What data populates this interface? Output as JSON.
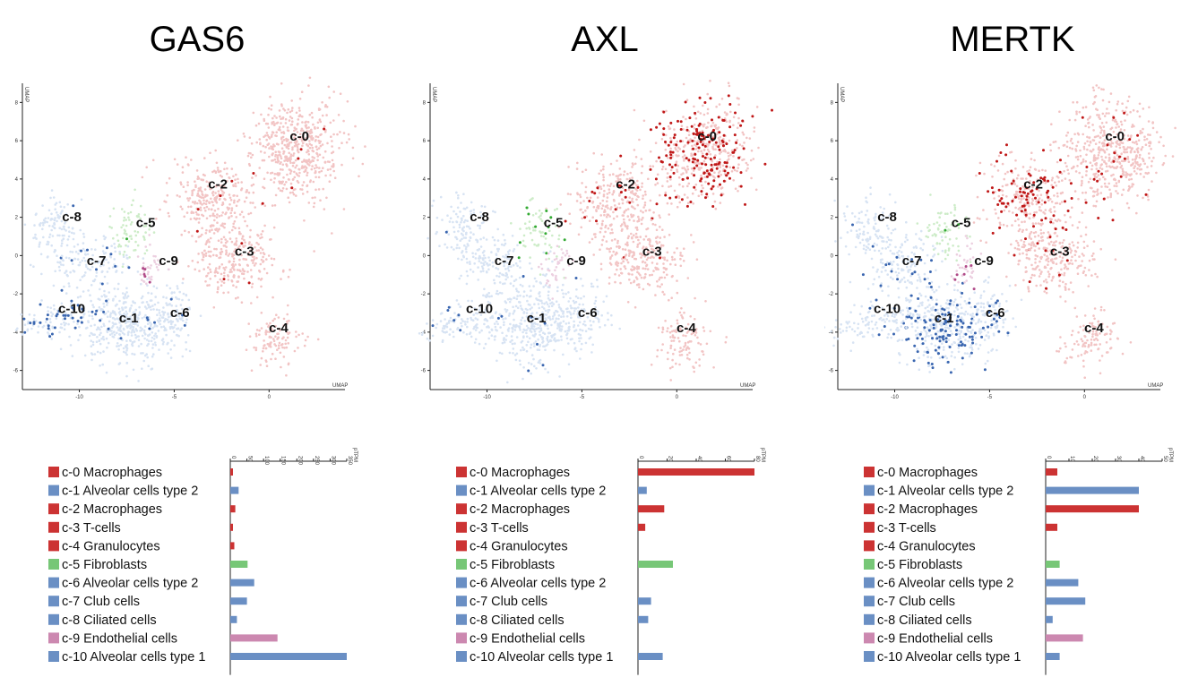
{
  "cluster_colors": {
    "c-0": "#cc3333",
    "c-1": "#6a8fc4",
    "c-2": "#cc3333",
    "c-3": "#cc3333",
    "c-4": "#cc3333",
    "c-5": "#77c777",
    "c-6": "#6a8fc4",
    "c-7": "#6a8fc4",
    "c-8": "#6a8fc4",
    "c-9": "#cc88b0",
    "c-10": "#6a8fc4"
  },
  "chart_data": [
    {
      "gene": "GAS6",
      "type": "scatter",
      "xlabel": "UMAP",
      "ylabel": "UMAP",
      "xlim": [
        -13,
        4
      ],
      "ylim": [
        -7,
        9
      ],
      "xticks": [
        -10,
        -5,
        0
      ],
      "yticks": [
        -6,
        -4,
        -2,
        0,
        2,
        4,
        6,
        8
      ],
      "clusters": [
        "c-0",
        "c-1",
        "c-2",
        "c-3",
        "c-4",
        "c-5",
        "c-6",
        "c-7",
        "c-8",
        "c-9",
        "c-10"
      ],
      "bar": {
        "type": "bar",
        "unit": "pTPM",
        "ticks": [
          0,
          50,
          100,
          150,
          200,
          250,
          300,
          350
        ],
        "xlim": [
          0,
          350
        ],
        "categories": [
          "c-0 Macrophages",
          "c-1 Alveolar cells type 2",
          "c-2 Macrophages",
          "c-3 T-cells",
          "c-4 Granulocytes",
          "c-5 Fibroblasts",
          "c-6 Alveolar cells type 2",
          "c-7 Club cells",
          "c-8 Ciliated cells",
          "c-9 Endothelial cells",
          "c-10 Alveolar cells type 1"
        ],
        "values": [
          8,
          25,
          15,
          8,
          12,
          52,
          72,
          50,
          20,
          142,
          350
        ]
      }
    },
    {
      "gene": "AXL",
      "type": "scatter",
      "xlabel": "UMAP",
      "ylabel": "UMAP",
      "xlim": [
        -13,
        4
      ],
      "ylim": [
        -7,
        9
      ],
      "xticks": [
        -10,
        -5,
        0
      ],
      "yticks": [
        -6,
        -4,
        -2,
        0,
        2,
        4,
        6,
        8
      ],
      "clusters": [
        "c-0",
        "c-1",
        "c-2",
        "c-3",
        "c-4",
        "c-5",
        "c-6",
        "c-7",
        "c-8",
        "c-9",
        "c-10"
      ],
      "bar": {
        "type": "bar",
        "unit": "pTPM",
        "ticks": [
          0,
          20,
          40,
          60,
          80
        ],
        "xlim": [
          0,
          80
        ],
        "categories": [
          "c-0 Macrophages",
          "c-1 Alveolar cells type 2",
          "c-2 Macrophages",
          "c-3 T-cells",
          "c-4 Granulocytes",
          "c-5 Fibroblasts",
          "c-6 Alveolar cells type 2",
          "c-7 Club cells",
          "c-8 Ciliated cells",
          "c-9 Endothelial cells",
          "c-10 Alveolar cells type 1"
        ],
        "values": [
          80,
          6,
          18,
          5,
          0,
          24,
          0,
          9,
          7,
          0,
          17
        ]
      }
    },
    {
      "gene": "MERTK",
      "type": "scatter",
      "xlabel": "UMAP",
      "ylabel": "UMAP",
      "xlim": [
        -13,
        4
      ],
      "ylim": [
        -7,
        9
      ],
      "xticks": [
        -10,
        -5,
        0
      ],
      "yticks": [
        -6,
        -4,
        -2,
        0,
        2,
        4,
        6,
        8
      ],
      "clusters": [
        "c-0",
        "c-1",
        "c-2",
        "c-3",
        "c-4",
        "c-5",
        "c-6",
        "c-7",
        "c-8",
        "c-9",
        "c-10"
      ],
      "bar": {
        "type": "bar",
        "unit": "pTPM",
        "ticks": [
          0,
          10,
          20,
          30,
          40,
          50
        ],
        "xlim": [
          0,
          50
        ],
        "categories": [
          "c-0 Macrophages",
          "c-1 Alveolar cells type 2",
          "c-2 Macrophages",
          "c-3 T-cells",
          "c-4 Granulocytes",
          "c-5 Fibroblasts",
          "c-6 Alveolar cells type 2",
          "c-7 Club cells",
          "c-8 Ciliated cells",
          "c-9 Endothelial cells",
          "c-10 Alveolar cells type 1"
        ],
        "values": [
          5,
          40,
          40,
          5,
          0,
          6,
          14,
          17,
          3,
          16,
          6
        ]
      }
    }
  ]
}
